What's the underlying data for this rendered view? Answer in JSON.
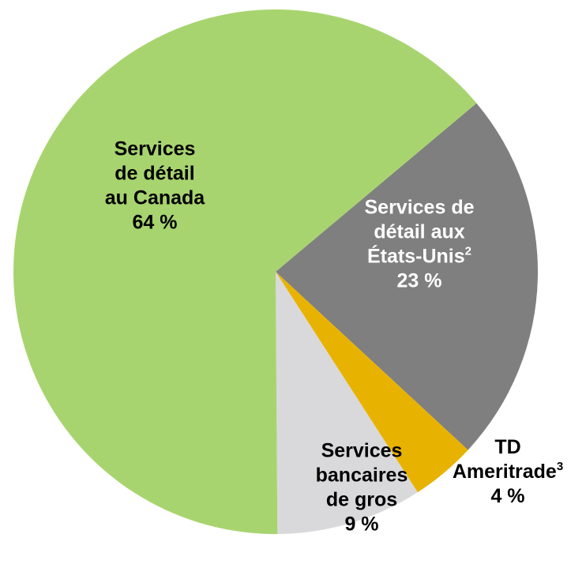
{
  "chart_data": {
    "type": "pie",
    "start": "top-right, clockwise",
    "slices": [
      {
        "lines": [
          "Services de",
          "détail aux",
          "États-Unis"
        ],
        "superscript": "2",
        "value_label": "23 %",
        "value": 23,
        "color": "#7f7f7f",
        "label_color": "#ffffff"
      },
      {
        "lines": [
          "TD",
          "Ameritrade"
        ],
        "superscript": "3",
        "value_label": "4 %",
        "value": 4,
        "color": "#e8b300",
        "label_color": "#000000"
      },
      {
        "lines": [
          "Services",
          "bancaires",
          "de gros"
        ],
        "superscript": "",
        "value_label": "9 %",
        "value": 9,
        "color": "#d9d9db",
        "label_color": "#000000"
      },
      {
        "lines": [
          "Services",
          "de détail",
          "au Canada"
        ],
        "superscript": "",
        "value_label": "64 %",
        "value": 64,
        "color": "#a8d46f",
        "label_color": "#000000"
      }
    ]
  }
}
